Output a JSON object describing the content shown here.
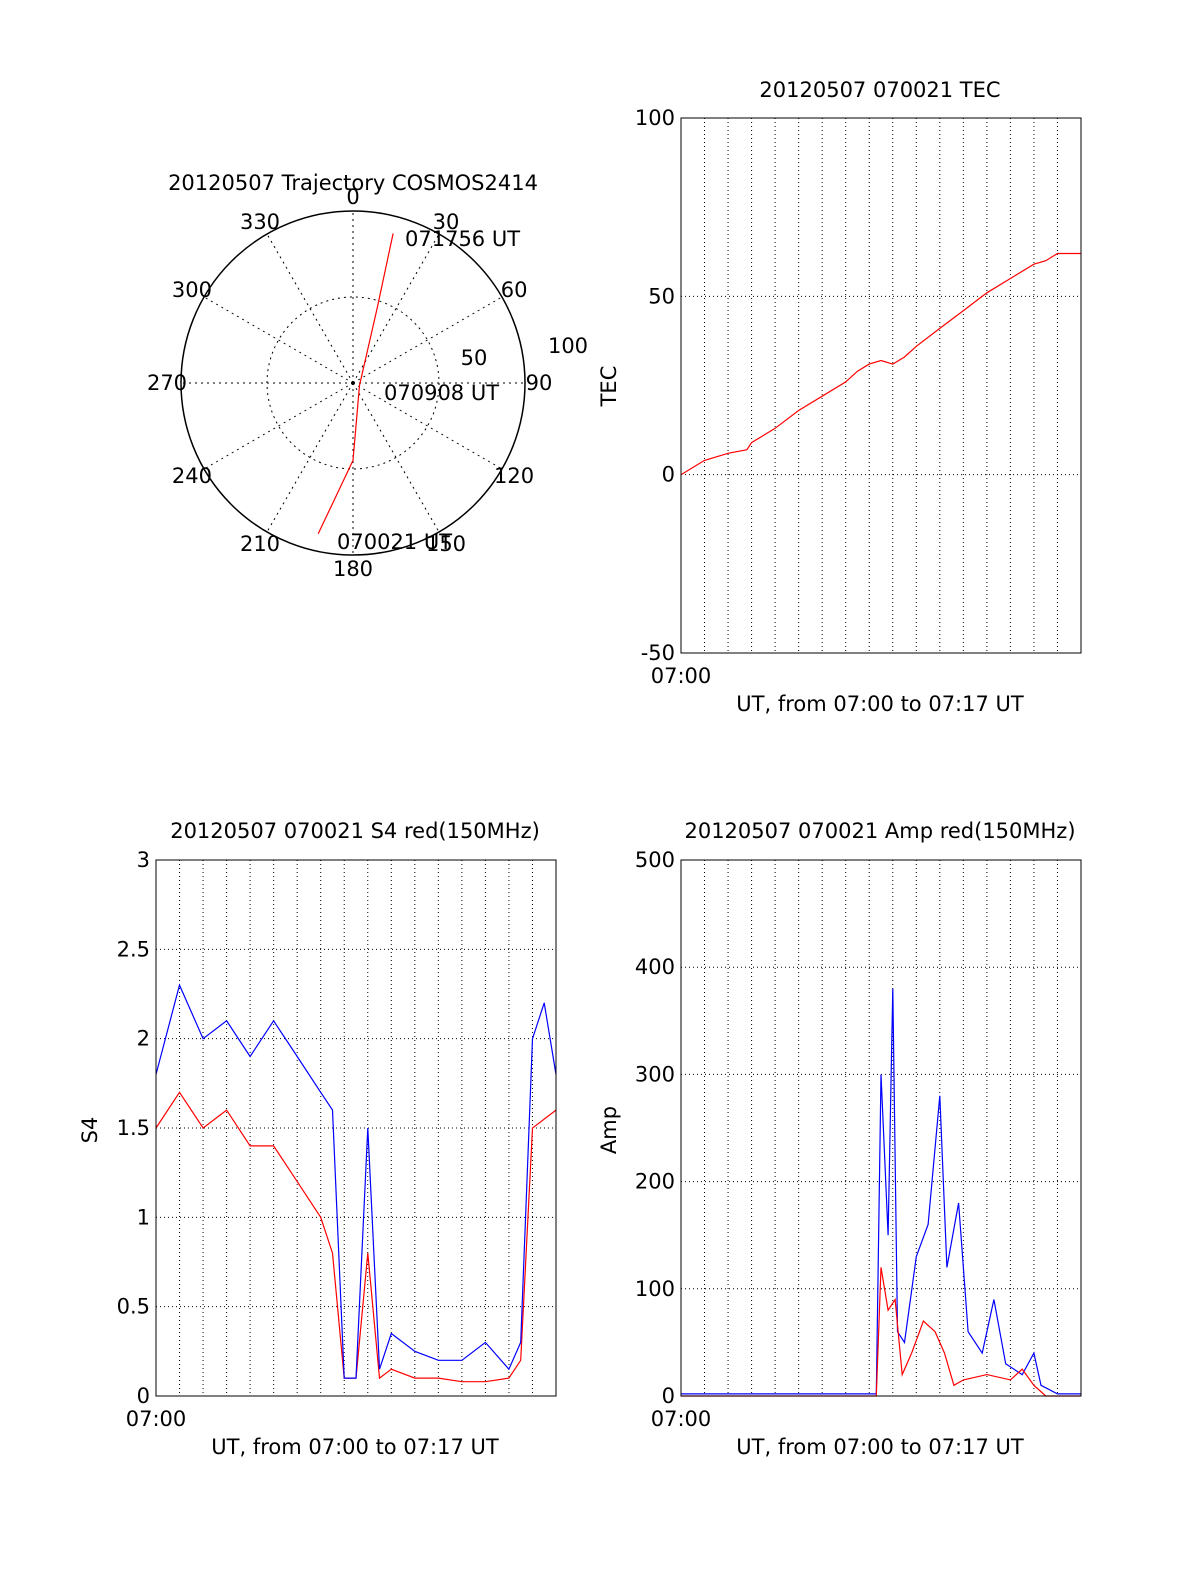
{
  "chart_data": [
    {
      "type": "polar",
      "title": "20120507 Trajectory COSMOS2414",
      "azimuth_labels": [
        "0",
        "30",
        "60",
        "90",
        "120",
        "150",
        "180",
        "210",
        "240",
        "270",
        "300",
        "330"
      ],
      "radius_labels": [
        "50",
        "100"
      ],
      "track_color": "#ff0000",
      "track": [
        {
          "az": 193,
          "r": 90
        },
        {
          "az": 180,
          "r": 45
        },
        {
          "az": 110,
          "r": 4
        },
        {
          "az": 18,
          "r": 45
        },
        {
          "az": 15,
          "r": 90
        }
      ],
      "annotations": [
        "071756 UT",
        "070908 UT",
        "070021 UT"
      ]
    },
    {
      "type": "line",
      "title": "20120507 070021 TEC",
      "xlabel": "UT, from 07:00 to 07:17 UT",
      "ylabel": "TEC",
      "x_tick_label": "07:00",
      "xlim_minutes": [
        0,
        17
      ],
      "ylim": [
        -50,
        100
      ],
      "yticks": [
        "-50",
        "0",
        "50",
        "100"
      ],
      "series": [
        {
          "color": "#ff0000",
          "points": [
            [
              0,
              0
            ],
            [
              0.5,
              2
            ],
            [
              1,
              4
            ],
            [
              2,
              6
            ],
            [
              2.8,
              7
            ],
            [
              3,
              9
            ],
            [
              4,
              13
            ],
            [
              5,
              18
            ],
            [
              6,
              22
            ],
            [
              7,
              26
            ],
            [
              7.5,
              29
            ],
            [
              8,
              31
            ],
            [
              8.5,
              32
            ],
            [
              9,
              31
            ],
            [
              9.5,
              33
            ],
            [
              10,
              36
            ],
            [
              11,
              41
            ],
            [
              12,
              46
            ],
            [
              13,
              51
            ],
            [
              14,
              55
            ],
            [
              15,
              59
            ],
            [
              15.5,
              60
            ],
            [
              16,
              62
            ],
            [
              17,
              62
            ]
          ]
        }
      ]
    },
    {
      "type": "line",
      "title": "20120507 070021 S4 red(150MHz)",
      "xlabel": "UT, from 07:00 to 07:17 UT",
      "ylabel": "S4",
      "x_tick_label": "07:00",
      "xlim_minutes": [
        0,
        17
      ],
      "ylim": [
        0,
        3
      ],
      "yticks": [
        "0",
        "0.5",
        "1",
        "1.5",
        "2",
        "2.5",
        "3"
      ],
      "series": [
        {
          "color": "#0000ff",
          "points": [
            [
              0,
              1.8
            ],
            [
              1,
              2.3
            ],
            [
              2,
              2.0
            ],
            [
              3,
              2.1
            ],
            [
              4,
              1.9
            ],
            [
              5,
              2.1
            ],
            [
              6,
              1.9
            ],
            [
              7,
              1.7
            ],
            [
              7.5,
              1.6
            ],
            [
              8,
              0.1
            ],
            [
              8.5,
              0.1
            ],
            [
              9,
              1.5
            ],
            [
              9.5,
              0.15
            ],
            [
              10,
              0.35
            ],
            [
              11,
              0.25
            ],
            [
              12,
              0.2
            ],
            [
              13,
              0.2
            ],
            [
              14,
              0.3
            ],
            [
              15,
              0.15
            ],
            [
              15.5,
              0.3
            ],
            [
              16,
              2.0
            ],
            [
              16.5,
              2.2
            ],
            [
              17,
              1.8
            ]
          ]
        },
        {
          "color": "#ff0000",
          "points": [
            [
              0,
              1.5
            ],
            [
              1,
              1.7
            ],
            [
              2,
              1.5
            ],
            [
              3,
              1.6
            ],
            [
              4,
              1.4
            ],
            [
              5,
              1.4
            ],
            [
              6,
              1.2
            ],
            [
              7,
              1.0
            ],
            [
              7.5,
              0.8
            ],
            [
              8,
              0.1
            ],
            [
              8.5,
              0.1
            ],
            [
              9,
              0.8
            ],
            [
              9.5,
              0.1
            ],
            [
              10,
              0.15
            ],
            [
              11,
              0.1
            ],
            [
              12,
              0.1
            ],
            [
              13,
              0.08
            ],
            [
              14,
              0.08
            ],
            [
              15,
              0.1
            ],
            [
              15.5,
              0.2
            ],
            [
              16,
              1.5
            ],
            [
              17,
              1.6
            ]
          ]
        }
      ]
    },
    {
      "type": "line",
      "title": "20120507 070021 Amp red(150MHz)",
      "xlabel": "UT, from 07:00 to 07:17 UT",
      "ylabel": "Amp",
      "x_tick_label": "07:00",
      "xlim_minutes": [
        0,
        17
      ],
      "ylim": [
        0,
        500
      ],
      "yticks": [
        "0",
        "100",
        "200",
        "300",
        "400",
        "500"
      ],
      "series": [
        {
          "color": "#0000ff",
          "points": [
            [
              0,
              2
            ],
            [
              8.3,
              2
            ],
            [
              8.5,
              300
            ],
            [
              8.8,
              150
            ],
            [
              9.0,
              380
            ],
            [
              9.2,
              60
            ],
            [
              9.5,
              50
            ],
            [
              10,
              130
            ],
            [
              10.5,
              160
            ],
            [
              11.0,
              280
            ],
            [
              11.3,
              120
            ],
            [
              11.8,
              180
            ],
            [
              12.2,
              60
            ],
            [
              12.8,
              40
            ],
            [
              13.3,
              90
            ],
            [
              13.8,
              30
            ],
            [
              14.5,
              20
            ],
            [
              15,
              40
            ],
            [
              15.3,
              10
            ],
            [
              16,
              2
            ],
            [
              17,
              2
            ]
          ]
        },
        {
          "color": "#ff0000",
          "points": [
            [
              0,
              0
            ],
            [
              8.3,
              0
            ],
            [
              8.5,
              120
            ],
            [
              8.8,
              80
            ],
            [
              9.1,
              90
            ],
            [
              9.4,
              20
            ],
            [
              9.8,
              40
            ],
            [
              10.3,
              70
            ],
            [
              10.8,
              60
            ],
            [
              11.2,
              40
            ],
            [
              11.6,
              10
            ],
            [
              12,
              15
            ],
            [
              13,
              20
            ],
            [
              14,
              15
            ],
            [
              14.5,
              25
            ],
            [
              15,
              10
            ],
            [
              15.5,
              0
            ],
            [
              17,
              0
            ]
          ]
        }
      ]
    }
  ]
}
